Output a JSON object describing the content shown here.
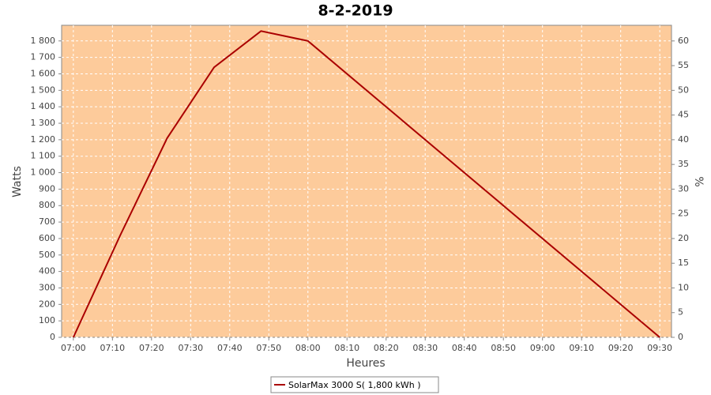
{
  "chart_data": {
    "type": "line",
    "title": "8-2-2019",
    "x_label": "Heures",
    "y_label": "Watts",
    "y2_label": "%",
    "x": [
      "07:00",
      "07:12",
      "07:24",
      "07:36",
      "07:48",
      "08:00",
      "09:30"
    ],
    "series": [
      {
        "name": "SolarMax 3000 S( 1,800 kWh )",
        "color": "#aa0000",
        "values": [
          0,
          620,
          1210,
          1640,
          1860,
          1800,
          0
        ]
      }
    ],
    "xlim": [
      "06:57",
      "09:33"
    ],
    "xticks": [
      "07:00",
      "07:10",
      "07:20",
      "07:30",
      "07:40",
      "07:50",
      "08:00",
      "08:10",
      "08:20",
      "08:30",
      "08:40",
      "08:50",
      "09:00",
      "09:10",
      "09:20",
      "09:30"
    ],
    "ylim": [
      0,
      1895
    ],
    "yticks": [
      0,
      100,
      200,
      300,
      400,
      500,
      600,
      700,
      800,
      900,
      {
        "value": 1000,
        "label": "1 000"
      },
      {
        "value": 1100,
        "label": "1 100"
      },
      {
        "value": 1200,
        "label": "1 200"
      },
      {
        "value": 1300,
        "label": "1 300"
      },
      {
        "value": 1400,
        "label": "1 400"
      },
      {
        "value": 1500,
        "label": "1 500"
      },
      {
        "value": 1600,
        "label": "1 600"
      },
      {
        "value": 1700,
        "label": "1 700"
      },
      {
        "value": 1800,
        "label": "1 800"
      }
    ],
    "y2lim": [
      0,
      63.17
    ],
    "y2ticks": [
      0,
      5,
      10,
      15,
      20,
      25,
      30,
      35,
      40,
      45,
      50,
      55,
      60
    ],
    "grid": true,
    "plot_background": "#fdcb9b",
    "legend": "bottom"
  }
}
